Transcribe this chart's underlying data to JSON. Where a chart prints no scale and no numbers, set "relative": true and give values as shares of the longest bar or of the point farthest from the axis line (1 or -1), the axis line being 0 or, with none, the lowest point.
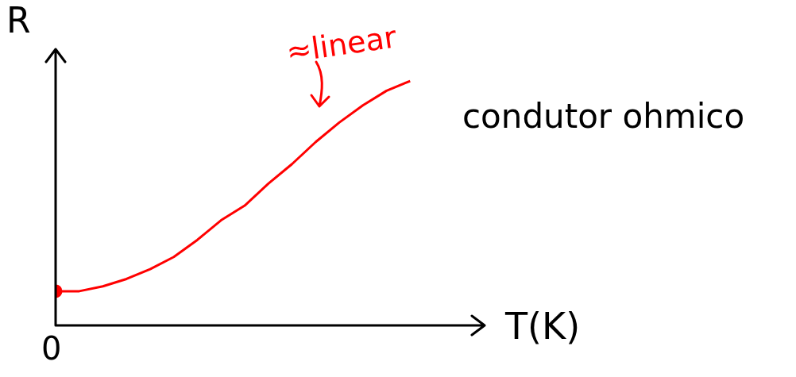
{
  "chart_data": {
    "type": "line",
    "relative": true,
    "xlabel": "T(K)",
    "ylabel": "R",
    "categories": [
      null,
      null,
      null,
      null,
      null,
      null,
      null,
      null,
      null,
      null,
      null,
      null,
      null,
      null,
      null,
      null
    ],
    "series": [
      {
        "color": "#ff0000",
        "values": [
          0.14,
          0.14,
          0.16,
          0.19,
          0.23,
          0.28,
          0.35,
          0.43,
          0.49,
          0.58,
          0.66,
          0.75,
          0.83,
          0.9,
          0.96,
          1
        ]
      }
    ],
    "annotations": [
      "≈linear",
      "condutor ohmico",
      "0"
    ],
    "legend": false
  }
}
